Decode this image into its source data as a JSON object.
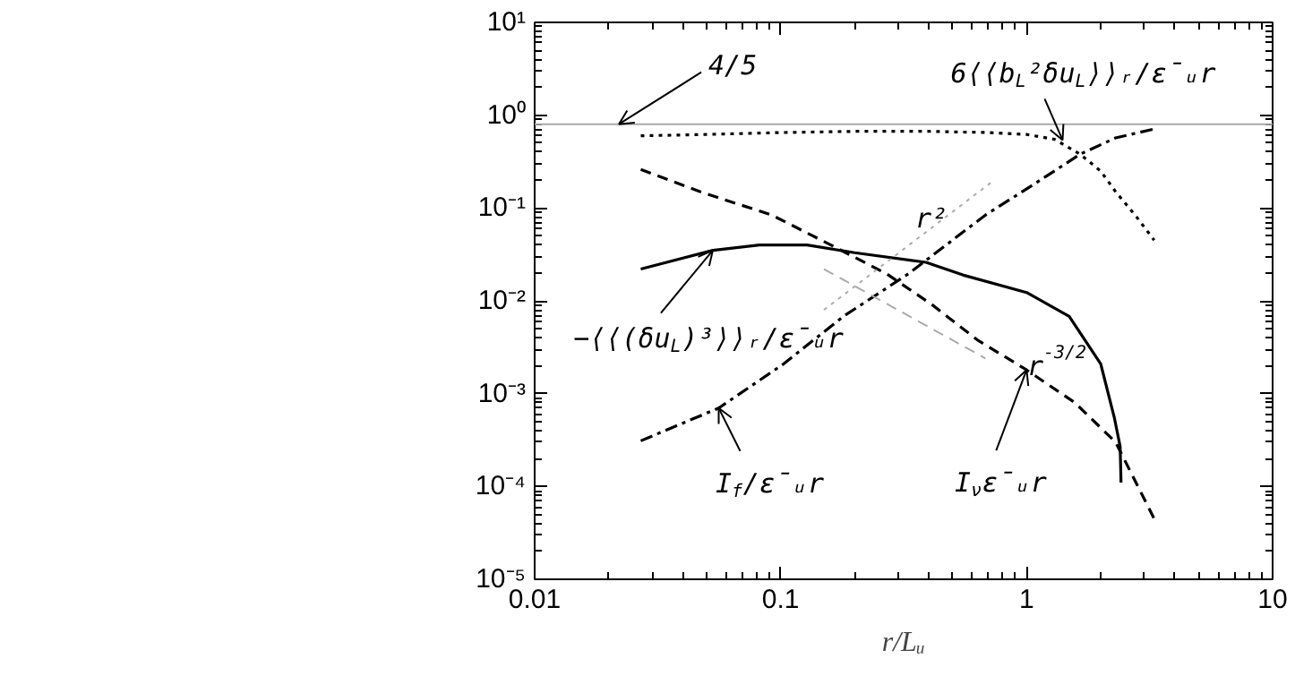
{
  "chart_data": {
    "type": "line",
    "log": "xy",
    "grid": false,
    "marker": "none",
    "xlabel": "r/Lᵤ",
    "xlim": [
      0.01,
      10
    ],
    "xticks": [
      0.01,
      0.1,
      1,
      10
    ],
    "ylim": [
      1e-05,
      10
    ],
    "yticks": [
      {
        "value": 1e-05,
        "label": "10⁻⁵"
      },
      {
        "value": 0.0001,
        "label": "10⁻⁴"
      },
      {
        "value": 0.001,
        "label": "10⁻³"
      },
      {
        "value": 0.01,
        "label": "10⁻²"
      },
      {
        "value": 0.1,
        "label": "10⁻¹"
      },
      {
        "value": 1,
        "label": "10⁰"
      },
      {
        "value": 10,
        "label": "10¹"
      }
    ],
    "series": [
      {
        "color": "#000000",
        "line_style": "dotted",
        "x": [
          0.027,
          0.05,
          0.1,
          0.2,
          0.4,
          0.7,
          1.0,
          1.3,
          1.65,
          2.0,
          2.3,
          2.8,
          3.3
        ],
        "values": [
          0.6,
          0.62,
          0.65,
          0.67,
          0.67,
          0.65,
          0.62,
          0.55,
          0.38,
          0.25,
          0.15,
          0.08,
          0.045
        ]
      },
      {
        "color": "#000000",
        "line_style": "solid",
        "x": [
          0.027,
          0.053,
          0.082,
          0.128,
          0.2,
          0.39,
          0.55,
          1.0,
          1.49,
          2.0,
          2.27,
          2.4,
          2.42
        ],
        "values": [
          0.022,
          0.035,
          0.04,
          0.04,
          0.033,
          0.026,
          0.019,
          0.0123,
          0.0068,
          0.0021,
          0.00056,
          0.00027,
          0.00011
        ]
      },
      {
        "color": "#000000",
        "line_style": "dashed",
        "x": [
          0.027,
          0.047,
          0.092,
          0.16,
          0.27,
          0.41,
          0.63,
          1.0,
          1.57,
          2.3,
          3.3
        ],
        "values": [
          0.26,
          0.15,
          0.084,
          0.04,
          0.0195,
          0.0092,
          0.0038,
          0.0018,
          0.0008,
          0.0003,
          4.5e-05
        ]
      },
      {
        "color": "#000000",
        "line_style": "dashdot",
        "x": [
          0.027,
          0.056,
          0.103,
          0.18,
          0.33,
          0.68,
          1.07,
          1.65,
          2.3,
          3.3
        ],
        "values": [
          0.00031,
          0.0007,
          0.0021,
          0.0068,
          0.0195,
          0.084,
          0.18,
          0.38,
          0.57,
          0.71
        ]
      },
      {
        "color": "#aaaaaa",
        "line_style": "dotted",
        "x": [
          0.15,
          0.72
        ],
        "values": [
          0.008,
          0.19
        ]
      },
      {
        "color": "#aaaaaa",
        "line_style": "dashed",
        "x": [
          0.15,
          0.68
        ],
        "values": [
          0.022,
          0.0024
        ]
      }
    ],
    "ref_lines": [
      {
        "axis": "y",
        "value": 0.8,
        "color": "#aaaaaa",
        "line_style": "solid"
      }
    ],
    "annotations": [
      {
        "text": "4/5",
        "x": 0.022,
        "y": 0.8
      },
      {
        "text": "6⟨⟨b$_{L}$²δu$_{L}$⟩⟩ᵣ/ε̄ᵤr",
        "x": 1.4,
        "y": 0.54
      },
      {
        "text": "−⟨⟨(δu$_{L}$)³⟩⟩ᵣ/ε̄ᵤr",
        "x": 0.053,
        "y": 0.035
      },
      {
        "text": "I$_{f}$/ε̄ᵤr",
        "x": 0.056,
        "y": 0.0007
      },
      {
        "text": "I$_{ν}$ε̄ᵤr",
        "x": 1.0,
        "y": 0.0018
      },
      {
        "text": "r²",
        "x": 0.41,
        "y": 0.077
      },
      "r$^{-3/2}$"
    ]
  }
}
